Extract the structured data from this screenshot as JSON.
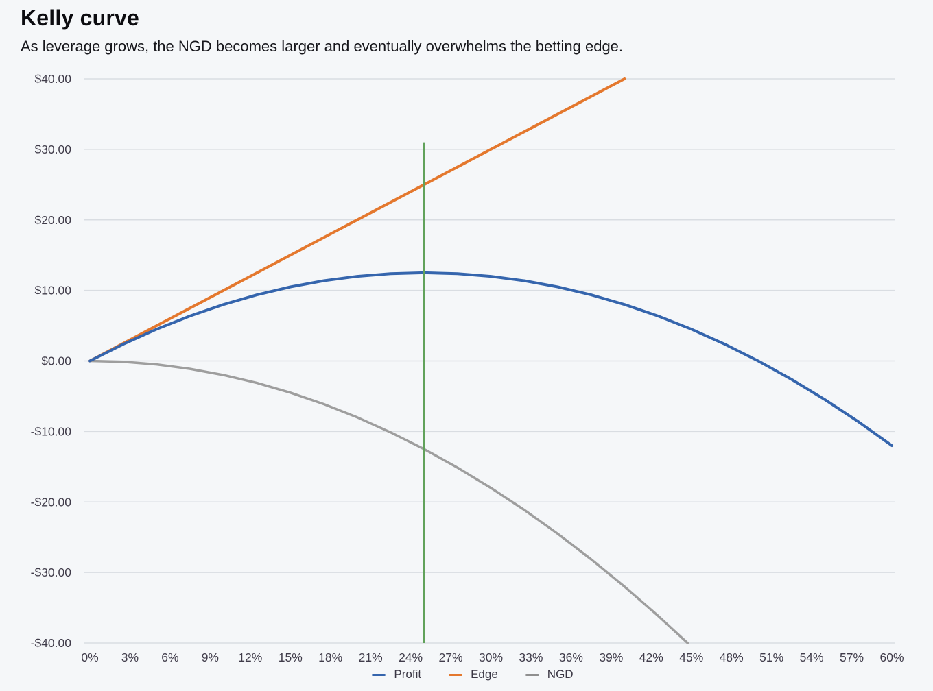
{
  "chart": {
    "title": "Kelly curve",
    "subtitle": "As leverage grows, the NGD becomes larger and eventually overwhelms the betting edge."
  },
  "chart_data": {
    "type": "line",
    "title": "Kelly curve",
    "subtitle": "As leverage grows, the NGD becomes larger and eventually overwhelms the betting edge.",
    "xlabel": "",
    "ylabel": "",
    "grid": "horizontal",
    "legend_position": "bottom",
    "colors": {
      "grid": "#d9dde2",
      "tick_text": "#403c4a",
      "background": "#f5f7f9"
    },
    "x_axis": {
      "min": 0,
      "max": 60,
      "unit": "%",
      "tick_values": [
        0,
        3,
        6,
        9,
        12,
        15,
        18,
        21,
        24,
        27,
        30,
        33,
        36,
        39,
        42,
        45,
        48,
        51,
        54,
        57,
        60
      ],
      "tick_labels": [
        "0%",
        "3%",
        "6%",
        "9%",
        "12%",
        "15%",
        "18%",
        "21%",
        "24%",
        "27%",
        "30%",
        "33%",
        "36%",
        "39%",
        "42%",
        "45%",
        "48%",
        "51%",
        "54%",
        "57%",
        "60%"
      ]
    },
    "y_axis": {
      "min": -40,
      "max": 40,
      "unit": "$",
      "tick_values": [
        40,
        30,
        20,
        10,
        0,
        -10,
        -20,
        -30,
        -40
      ],
      "tick_labels": [
        "$40.00",
        "$30.00",
        "$20.00",
        "$10.00",
        "$0.00",
        "-$10.00",
        "-$20.00",
        "-$30.00",
        "-$40.00"
      ]
    },
    "series": [
      {
        "name": "NGD",
        "color": "#9e9e9e",
        "width": 3.5,
        "points": [
          [
            0,
            0
          ],
          [
            2.5,
            -0.125
          ],
          [
            5,
            -0.5
          ],
          [
            7.5,
            -1.125
          ],
          [
            10,
            -2
          ],
          [
            12.5,
            -3.125
          ],
          [
            15,
            -4.5
          ],
          [
            17.5,
            -6.125
          ],
          [
            20,
            -8
          ],
          [
            22.5,
            -10.125
          ],
          [
            25,
            -12.5
          ],
          [
            27.5,
            -15.125
          ],
          [
            30,
            -18
          ],
          [
            32.5,
            -21.125
          ],
          [
            35,
            -24.5
          ],
          [
            37.5,
            -28.125
          ],
          [
            40,
            -32
          ],
          [
            42.5,
            -36.125
          ],
          [
            44.72,
            -40
          ]
        ]
      },
      {
        "name": "Edge",
        "color": "#e4782e",
        "width": 4,
        "points": [
          [
            0,
            0
          ],
          [
            40,
            40
          ]
        ]
      },
      {
        "name": "Profit",
        "color": "#3565ad",
        "width": 4,
        "points": [
          [
            0,
            0
          ],
          [
            2.5,
            2.375
          ],
          [
            5,
            4.5
          ],
          [
            7.5,
            6.375
          ],
          [
            10,
            8
          ],
          [
            12.5,
            9.375
          ],
          [
            15,
            10.5
          ],
          [
            17.5,
            11.375
          ],
          [
            20,
            12
          ],
          [
            22.5,
            12.375
          ],
          [
            25,
            12.5
          ],
          [
            27.5,
            12.375
          ],
          [
            30,
            12
          ],
          [
            32.5,
            11.375
          ],
          [
            35,
            10.5
          ],
          [
            37.5,
            9.375
          ],
          [
            40,
            8
          ],
          [
            42.5,
            6.375
          ],
          [
            45,
            4.5
          ],
          [
            47.5,
            2.375
          ],
          [
            50,
            0
          ],
          [
            52.5,
            -2.625
          ],
          [
            55,
            -5.5
          ],
          [
            57.5,
            -8.625
          ],
          [
            60,
            -12
          ]
        ]
      }
    ],
    "marker_line": {
      "name": "kelly-optimal-leverage",
      "color": "#61a25b",
      "width": 3,
      "x": 25,
      "y_from": -40,
      "y_to": 31
    }
  },
  "legend": {
    "items": [
      {
        "label": "Profit",
        "color": "#3565ad"
      },
      {
        "label": "Edge",
        "color": "#e4782e"
      },
      {
        "label": "NGD",
        "color": "#8f8f8f"
      }
    ]
  }
}
